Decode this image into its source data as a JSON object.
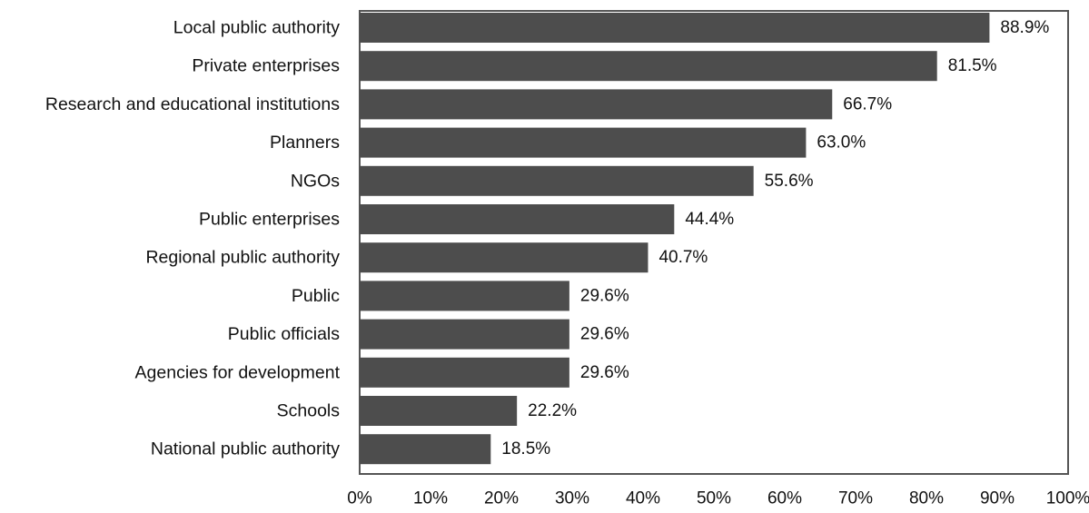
{
  "chart_data": {
    "type": "bar",
    "orientation": "horizontal",
    "categories": [
      "Local public authority",
      "Private enterprises",
      "Research and educational institutions",
      "Planners",
      "NGOs",
      "Public enterprises",
      "Regional public authority",
      "Public",
      "Public officials",
      "Agencies for development",
      "Schools",
      "National public authority"
    ],
    "values": [
      88.9,
      81.5,
      66.7,
      63.0,
      55.6,
      44.4,
      40.7,
      29.6,
      29.6,
      29.6,
      22.2,
      18.5
    ],
    "value_labels": [
      "88.9%",
      "81.5%",
      "66.7%",
      "63.0%",
      "55.6%",
      "44.4%",
      "40.7%",
      "29.6%",
      "29.6%",
      "29.6%",
      "22.2%",
      "18.5%"
    ],
    "x_ticks": [
      0,
      10,
      20,
      30,
      40,
      50,
      60,
      70,
      80,
      90,
      100
    ],
    "x_tick_labels": [
      "0%",
      "10%",
      "20%",
      "30%",
      "40%",
      "50%",
      "60%",
      "70%",
      "80%",
      "90%",
      "100%"
    ],
    "xlim": [
      0,
      100
    ],
    "title": "",
    "xlabel": "",
    "ylabel": "",
    "grid": false,
    "legend": "none",
    "bar_color": "#4d4d4d",
    "frame_color": "#555555"
  }
}
